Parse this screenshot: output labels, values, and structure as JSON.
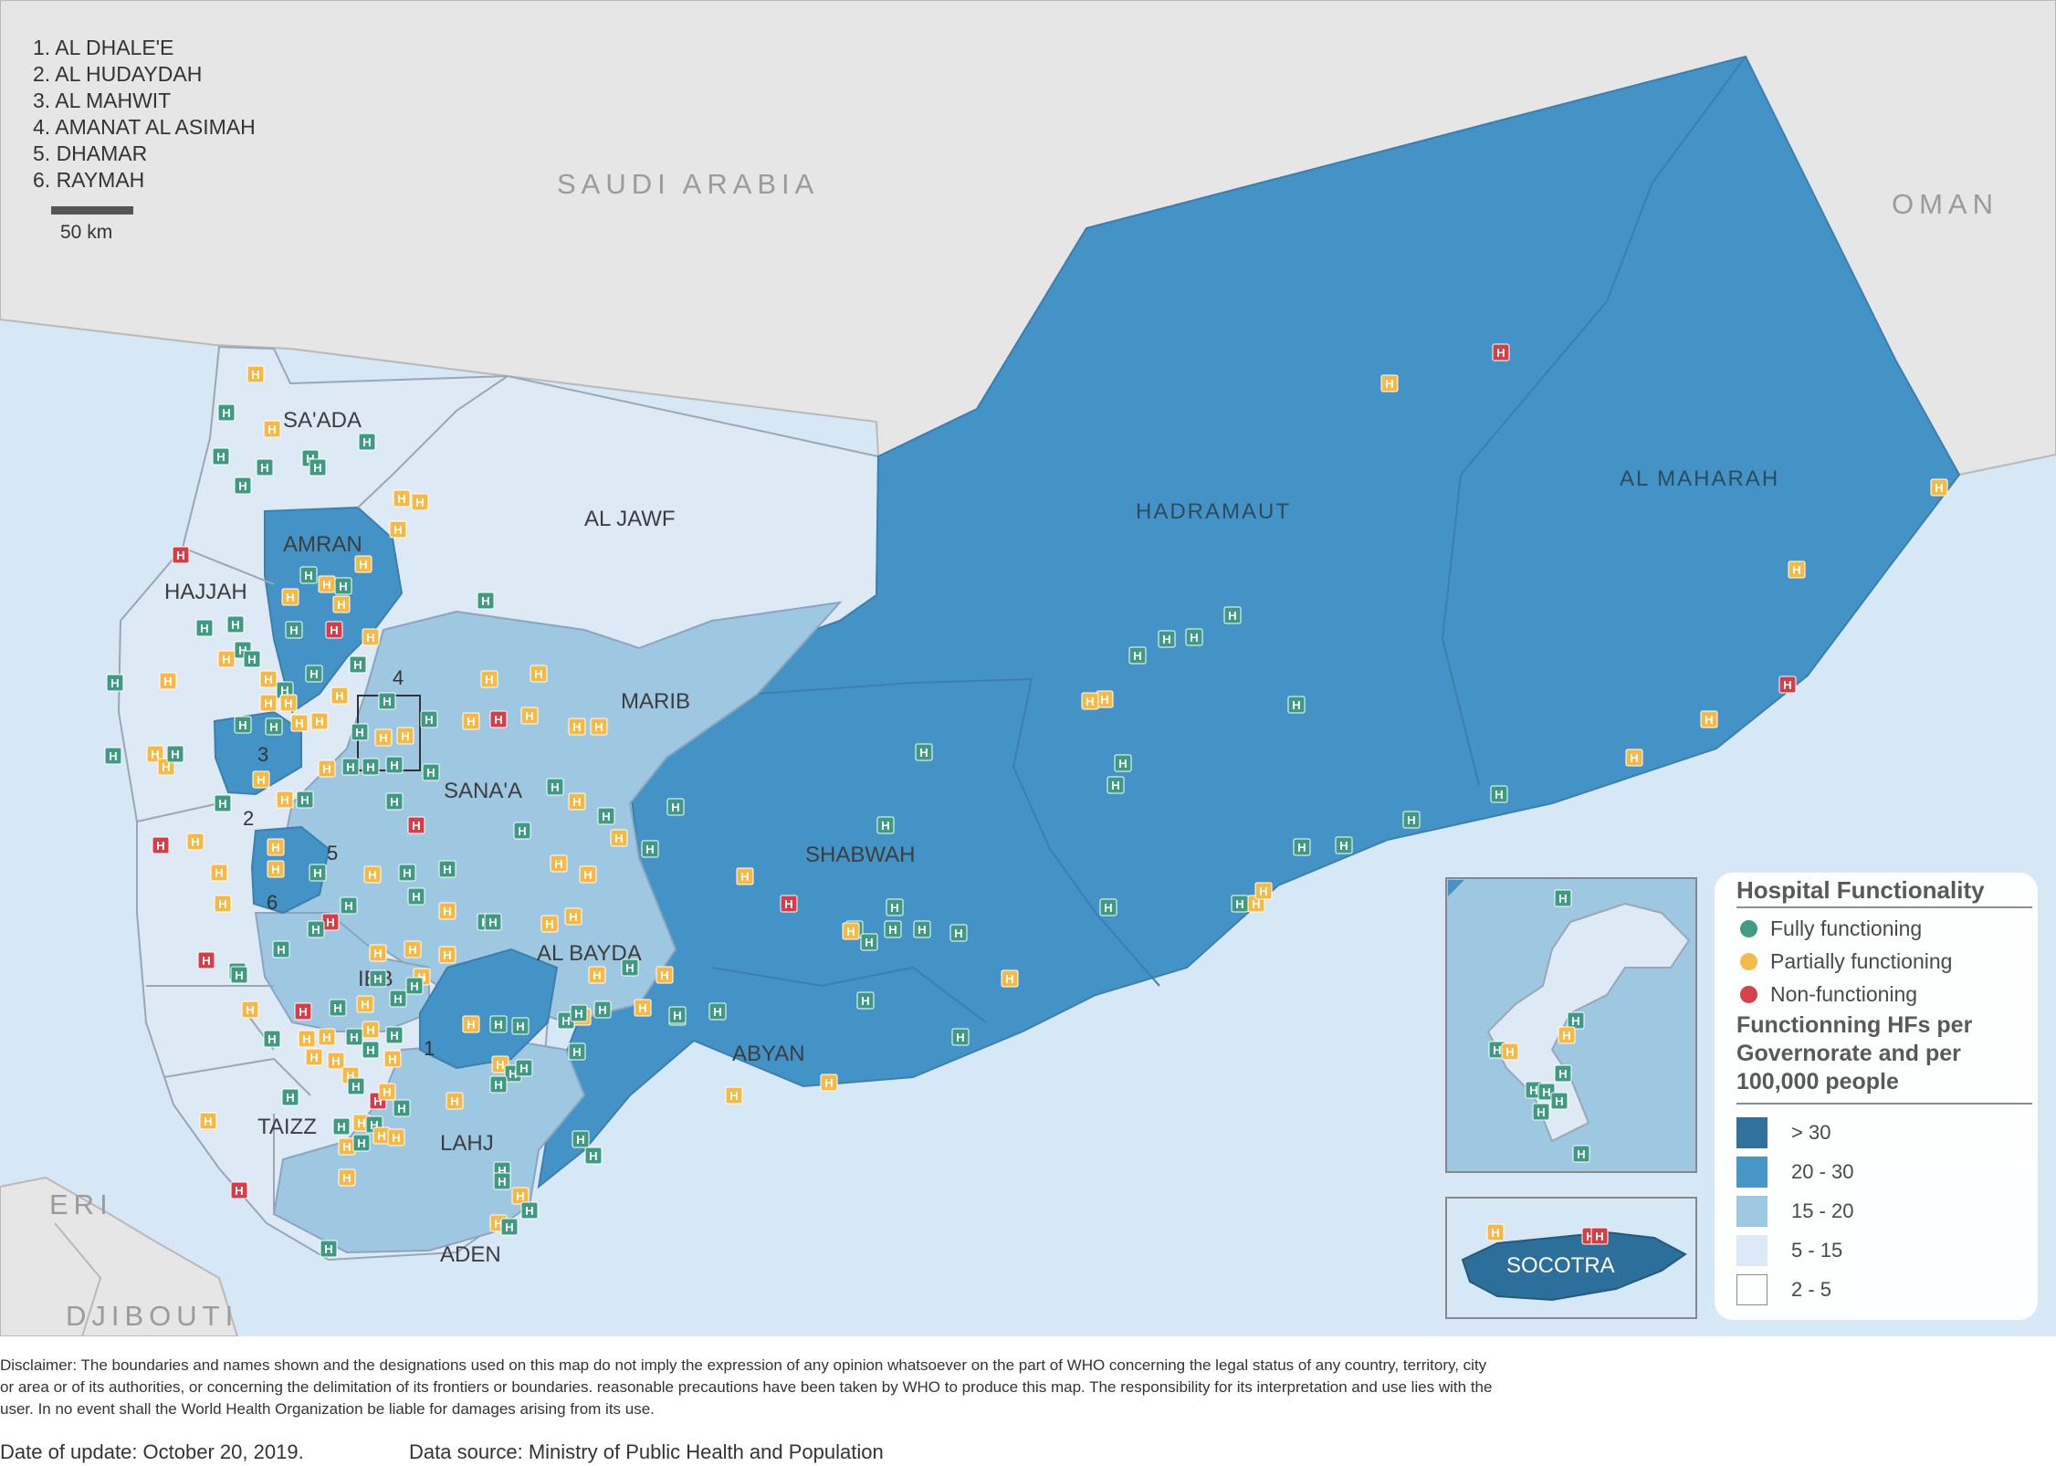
{
  "map": {
    "country_labels": [
      {
        "name": "SAUDI ARABIA"
      },
      {
        "name": "OMAN"
      },
      {
        "name": "ERI"
      },
      {
        "name": "DJIBOUTI"
      }
    ],
    "governorate_labels": [
      "SA'ADA",
      "AL JAWF",
      "AMRAN",
      "HAJJAH",
      "MARIB",
      "SANA'A",
      "HADRAMAUT",
      "AL MAHARAH",
      "SHABWAH",
      "AL BAYDA",
      "IBB",
      "ABYAN",
      "TAIZZ",
      "LAHJ",
      "ADEN",
      "SOCOTRA"
    ],
    "number_markers": [
      "1",
      "2",
      "3",
      "4",
      "5",
      "6"
    ],
    "key_list": [
      "1. AL DHALE'E",
      "2. AL HUDAYDAH",
      "3. AL MAHWIT",
      "4. AMANAT AL ASIMAH",
      "5. DHAMAR",
      "6. RAYMAH"
    ],
    "scale_label": "50 km",
    "hf_letter": "H",
    "colors": {
      "land_other": "#e6e6e6",
      "sea": "#d6e7f6",
      "class_gt30": "#2c6f9a",
      "class_20_30": "#4493c6",
      "class_15_20": "#9ec7e2",
      "class_5_15": "#ddeaf6",
      "class_2_5": "#ffffff",
      "fully": "#3e9a80",
      "partially": "#f7b944",
      "non": "#d63d46"
    },
    "governorate_classes": {
      "SA'ADA": "5 - 15",
      "AL JAWF": "5 - 15",
      "AMRAN": "20 - 30",
      "HAJJAH": "5 - 15",
      "MARIB": "15 - 20",
      "SANA'A": "15 - 20",
      "HADRAMAUT": "20 - 30",
      "AL MAHARAH": "20 - 30",
      "SHABWAH": "20 - 30",
      "AL BAYDA": "15 - 20",
      "IBB": "15 - 20",
      "ABYAN": "20 - 30",
      "TAIZZ": "5 - 15",
      "LAHJ": "15 - 20",
      "ADEN": "15 - 20",
      "SOCOTRA": "> 30",
      "AL DHALE'E": "20 - 30",
      "AL HUDAYDAH": "5 - 15",
      "AL MAHWIT": "20 - 30",
      "AMANAT AL ASIMAH": "5 - 15",
      "DHAMAR": "15 - 20",
      "RAYMAH": "20 - 30"
    }
  },
  "legend": {
    "title": "Hospital Functionality",
    "functionality": [
      {
        "label": "Fully functioning",
        "color": "#3e9a80"
      },
      {
        "label": "Partially functioning",
        "color": "#f7b944"
      },
      {
        "label": "Non-functioning",
        "color": "#d63d46"
      }
    ],
    "subtitle": "Functionning HFs per Governorate and per 100,000 people",
    "classes": [
      {
        "label": "> 30",
        "color": "#2c6f9a"
      },
      {
        "label": "20 - 30",
        "color": "#4493c6"
      },
      {
        "label": "15 - 20",
        "color": "#9ec7e2"
      },
      {
        "label": "5 - 15",
        "color": "#ddeaf6"
      },
      {
        "label": "2 - 5",
        "color": "#ffffff"
      }
    ]
  },
  "footer": {
    "disclaimer": "Disclaimer: The boundaries and names shown and the designations used on this map do not imply the expression of any opinion whatsoever on the part of WHO concerning the legal status of any country, territory, city or area or of its authorities, or concerning the delimitation of its frontiers or boundaries. reasonable precautions have been taken by WHO to produce this map. The responsibility for its interpretation and use lies with the user. In no event shall the World Health Organization be liable for damages arising from its use.",
    "date": "Date of update: October 20, 2019.",
    "source": "Data source: Ministry of Public Health and Population"
  }
}
